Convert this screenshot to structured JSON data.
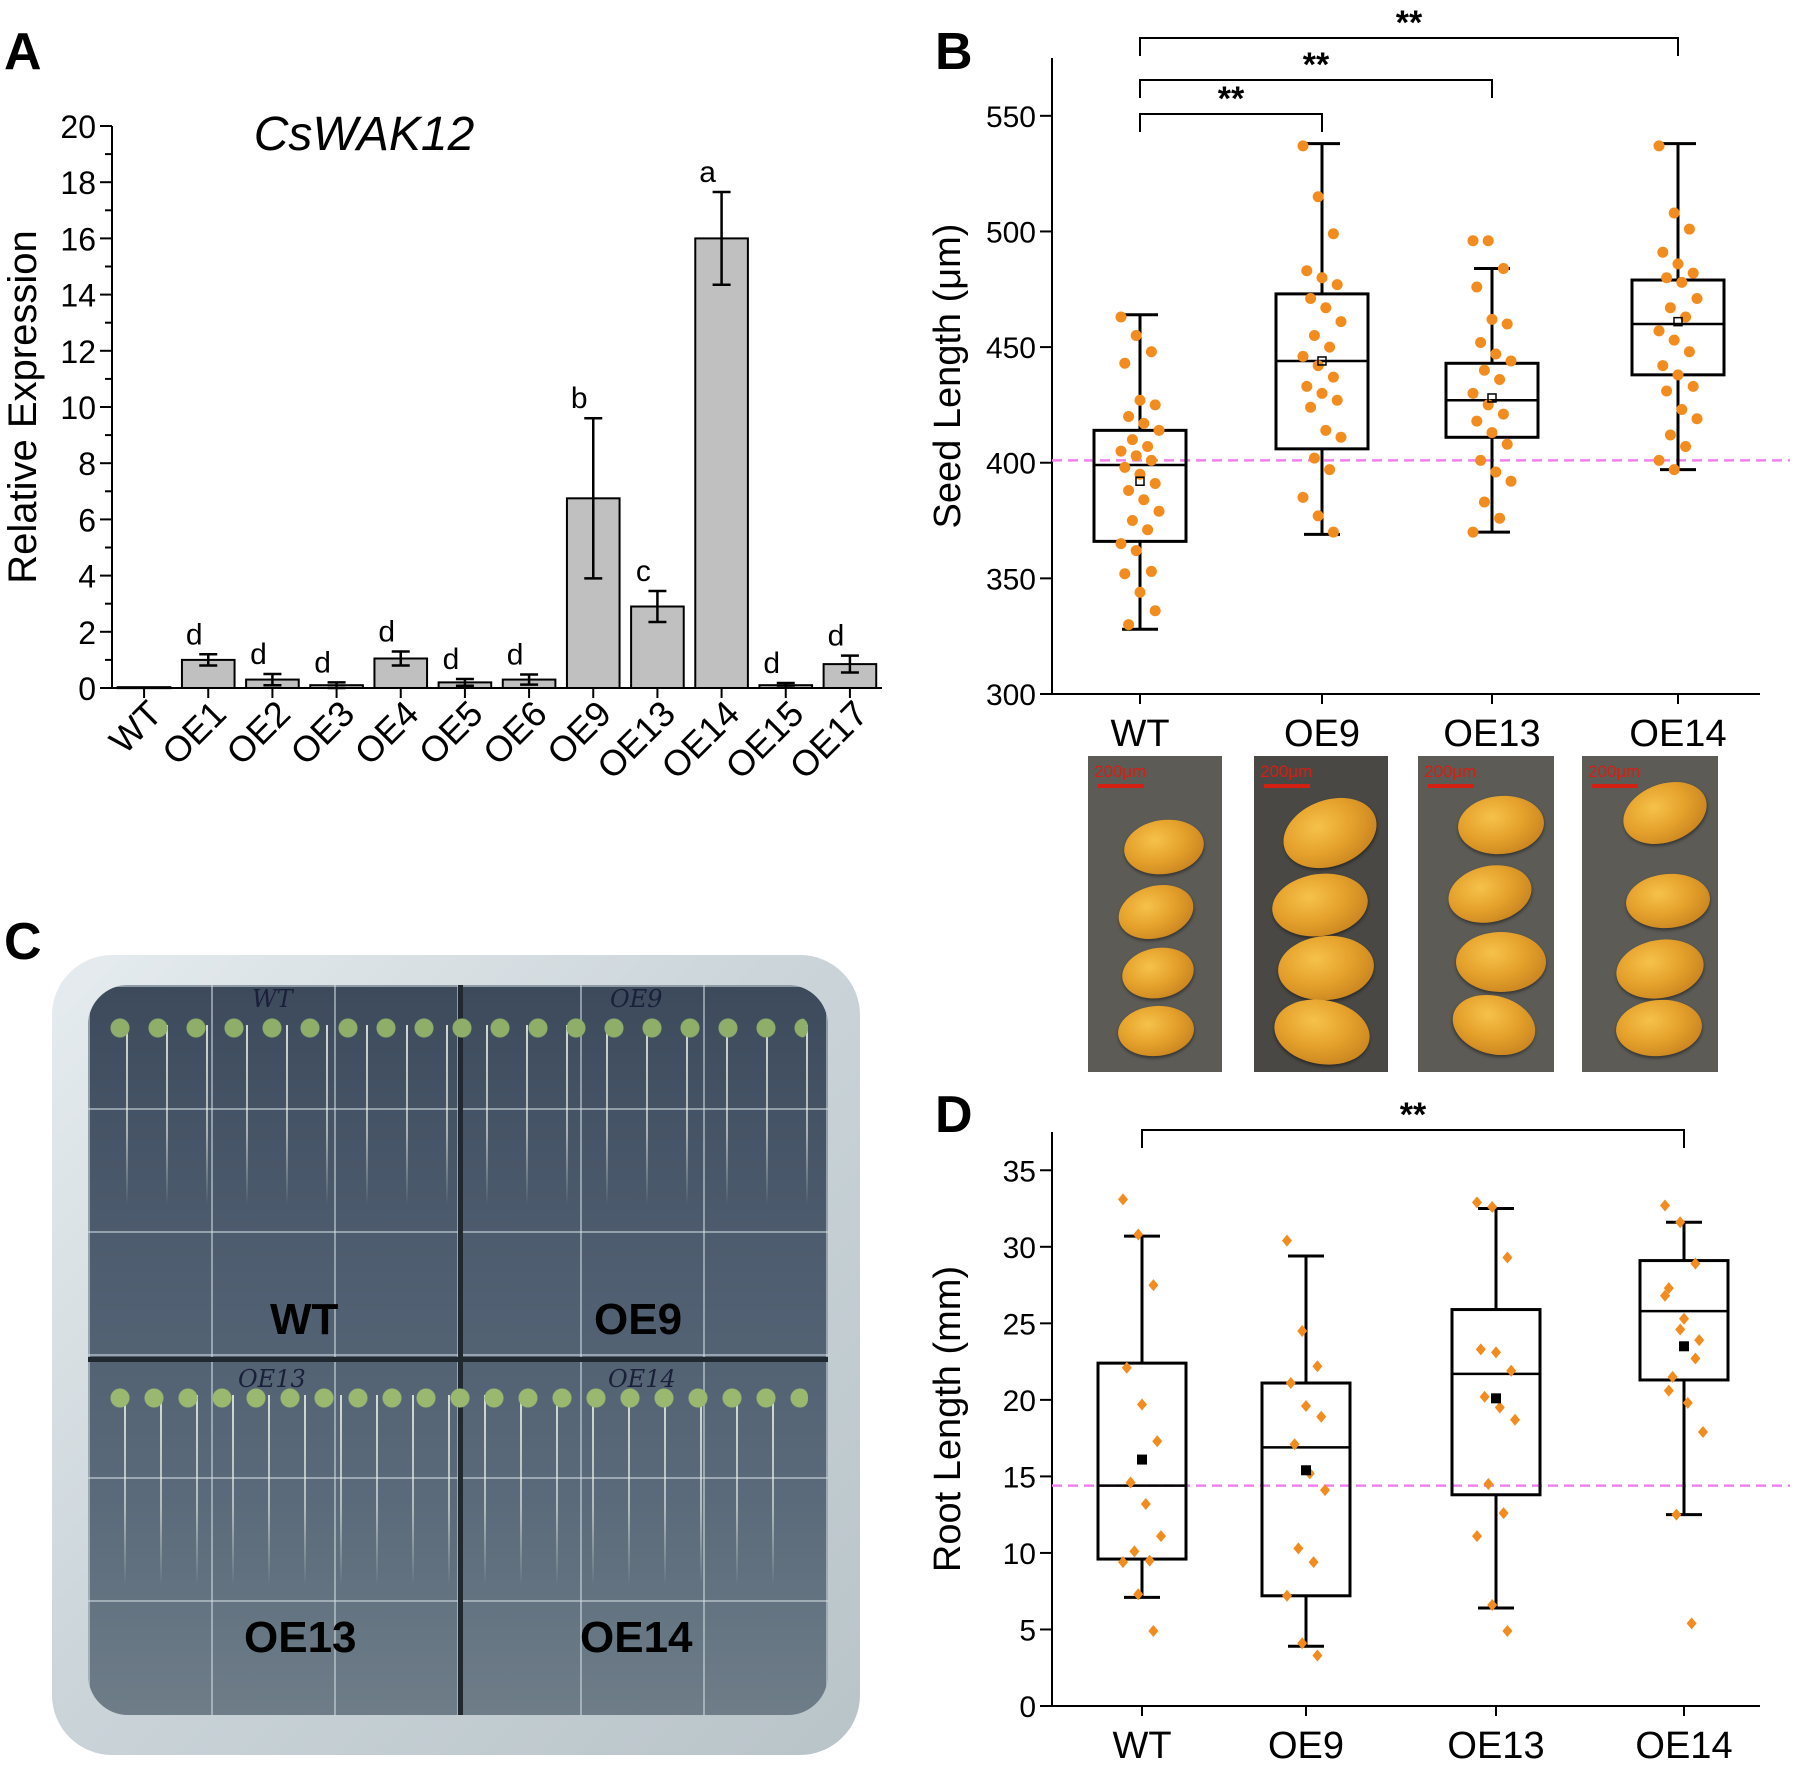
{
  "panel_labels": {
    "a": "A",
    "b": "B",
    "c": "C",
    "d": "D"
  },
  "colors": {
    "bar": "#c0c0c0",
    "point": "#f28c1e",
    "reference_line": "#ee82ee",
    "axis": "#000000",
    "scalebar": "#d41f13"
  },
  "chart_data": [
    {
      "panel": "A",
      "type": "bar",
      "title": "CsWAK12",
      "ylabel": "Relative Expression",
      "ylim": [
        0,
        20
      ],
      "yticks": [
        "0",
        "2",
        "4",
        "6",
        "8",
        "10",
        "12",
        "14",
        "16",
        "18",
        "20"
      ],
      "categories": [
        "WT",
        "OE1",
        "OE2",
        "OE3",
        "OE4",
        "OE5",
        "OE6",
        "OE9",
        "OE13",
        "OE14",
        "OE15",
        "OE17"
      ],
      "values": [
        0.03,
        1.0,
        0.3,
        0.1,
        1.05,
        0.2,
        0.3,
        6.75,
        2.9,
        16.0,
        0.1,
        0.85
      ],
      "errors": [
        0,
        0.2,
        0.2,
        0.1,
        0.25,
        0.12,
        0.18,
        2.85,
        0.55,
        1.65,
        0.08,
        0.3
      ],
      "sig_letters": [
        "",
        "d",
        "d",
        "d",
        "d",
        "d",
        "d",
        "b",
        "c",
        "a",
        "d",
        "d"
      ]
    },
    {
      "panel": "B",
      "type": "box",
      "ylabel": "Seed Length (μm)",
      "ylim": [
        300,
        575
      ],
      "yticks": [
        "300",
        "350",
        "400",
        "450",
        "500",
        "550"
      ],
      "categories": [
        "WT",
        "OE9",
        "OE13",
        "OE14"
      ],
      "reference_line": 401,
      "boxes": [
        {
          "whisker_low": 328,
          "q1": 366,
          "median": 399,
          "q3": 414,
          "whisker_high": 464,
          "mean": 392
        },
        {
          "whisker_low": 369,
          "q1": 406,
          "median": 444,
          "q3": 473,
          "whisker_high": 538,
          "mean": 444
        },
        {
          "whisker_low": 370,
          "q1": 411,
          "median": 427,
          "q3": 443,
          "whisker_high": 484,
          "mean": 428
        },
        {
          "whisker_low": 397,
          "q1": 438,
          "median": 460,
          "q3": 479,
          "whisker_high": 538,
          "mean": 461
        }
      ],
      "points": [
        [
          463,
          455,
          448,
          443,
          427,
          425,
          420,
          417,
          414,
          410,
          407,
          405,
          403,
          401,
          398,
          395,
          391,
          388,
          384,
          379,
          375,
          371,
          365,
          362,
          353,
          352,
          344,
          336,
          330
        ],
        [
          537,
          515,
          499,
          483,
          480,
          477,
          471,
          467,
          461,
          455,
          450,
          446,
          442,
          437,
          433,
          430,
          427,
          424,
          414,
          411,
          402,
          397,
          385,
          377,
          370
        ],
        [
          496,
          496,
          484,
          476,
          462,
          460,
          452,
          447,
          444,
          440,
          436,
          430,
          425,
          421,
          418,
          413,
          408,
          401,
          396,
          392,
          383,
          376,
          370
        ],
        [
          537,
          508,
          501,
          491,
          486,
          482,
          480,
          478,
          471,
          467,
          463,
          457,
          453,
          448,
          442,
          438,
          433,
          431,
          423,
          419,
          412,
          407,
          401,
          397
        ]
      ],
      "significance": [
        {
          "from": "WT",
          "to": "OE9",
          "label": "**"
        },
        {
          "from": "WT",
          "to": "OE13",
          "label": "**"
        },
        {
          "from": "WT",
          "to": "OE14",
          "label": "**"
        }
      ]
    },
    {
      "panel": "D",
      "type": "box",
      "ylabel": "Root Length (mm)",
      "ylim": [
        0,
        37.5
      ],
      "yticks": [
        "0",
        "5",
        "10",
        "15",
        "20",
        "25",
        "30",
        "35"
      ],
      "categories": [
        "WT",
        "OE9",
        "OE13",
        "OE14"
      ],
      "reference_line": 14.4,
      "boxes": [
        {
          "whisker_low": 7.1,
          "q1": 9.6,
          "median": 14.4,
          "q3": 22.4,
          "whisker_high": 30.7,
          "mean": 16.1
        },
        {
          "whisker_low": 3.9,
          "q1": 7.2,
          "median": 16.9,
          "q3": 21.1,
          "whisker_high": 29.4,
          "mean": 15.4
        },
        {
          "whisker_low": 6.4,
          "q1": 13.8,
          "median": 21.7,
          "q3": 25.9,
          "whisker_high": 32.5,
          "mean": 20.1
        },
        {
          "whisker_low": 12.5,
          "q1": 21.3,
          "median": 25.8,
          "q3": 29.1,
          "whisker_high": 31.6,
          "mean": 23.5
        }
      ],
      "points": [
        [
          33.1,
          30.8,
          27.5,
          22.1,
          19.7,
          17.3,
          14.6,
          13.2,
          11.1,
          10.1,
          9.5,
          9.4,
          7.3,
          4.9
        ],
        [
          30.4,
          24.5,
          22.2,
          21.1,
          19.6,
          18.9,
          17.1,
          15.2,
          14.1,
          10.3,
          9.4,
          7.2,
          4.1,
          3.3
        ],
        [
          32.9,
          32.6,
          29.3,
          23.3,
          23.1,
          21.9,
          20.2,
          19.5,
          18.7,
          14.5,
          12.6,
          11.1,
          6.6,
          4.9
        ],
        [
          32.7,
          31.6,
          28.9,
          27.3,
          25.3,
          23.9,
          21.5,
          19.8,
          17.9,
          12.5,
          5.4,
          26.8,
          24.6,
          22.7,
          20.6
        ]
      ],
      "significance": [
        {
          "from": "WT",
          "to": "OE14",
          "label": "**"
        }
      ]
    }
  ],
  "seed_photos": {
    "scale_label": "200μm",
    "lines": [
      "WT",
      "OE9",
      "OE13",
      "OE14"
    ]
  },
  "plate_photo": {
    "quadrant_labels": [
      "WT",
      "OE9",
      "OE13",
      "OE14"
    ],
    "handwritten": [
      "WT",
      "OE9",
      "OE13",
      "OE14"
    ]
  }
}
